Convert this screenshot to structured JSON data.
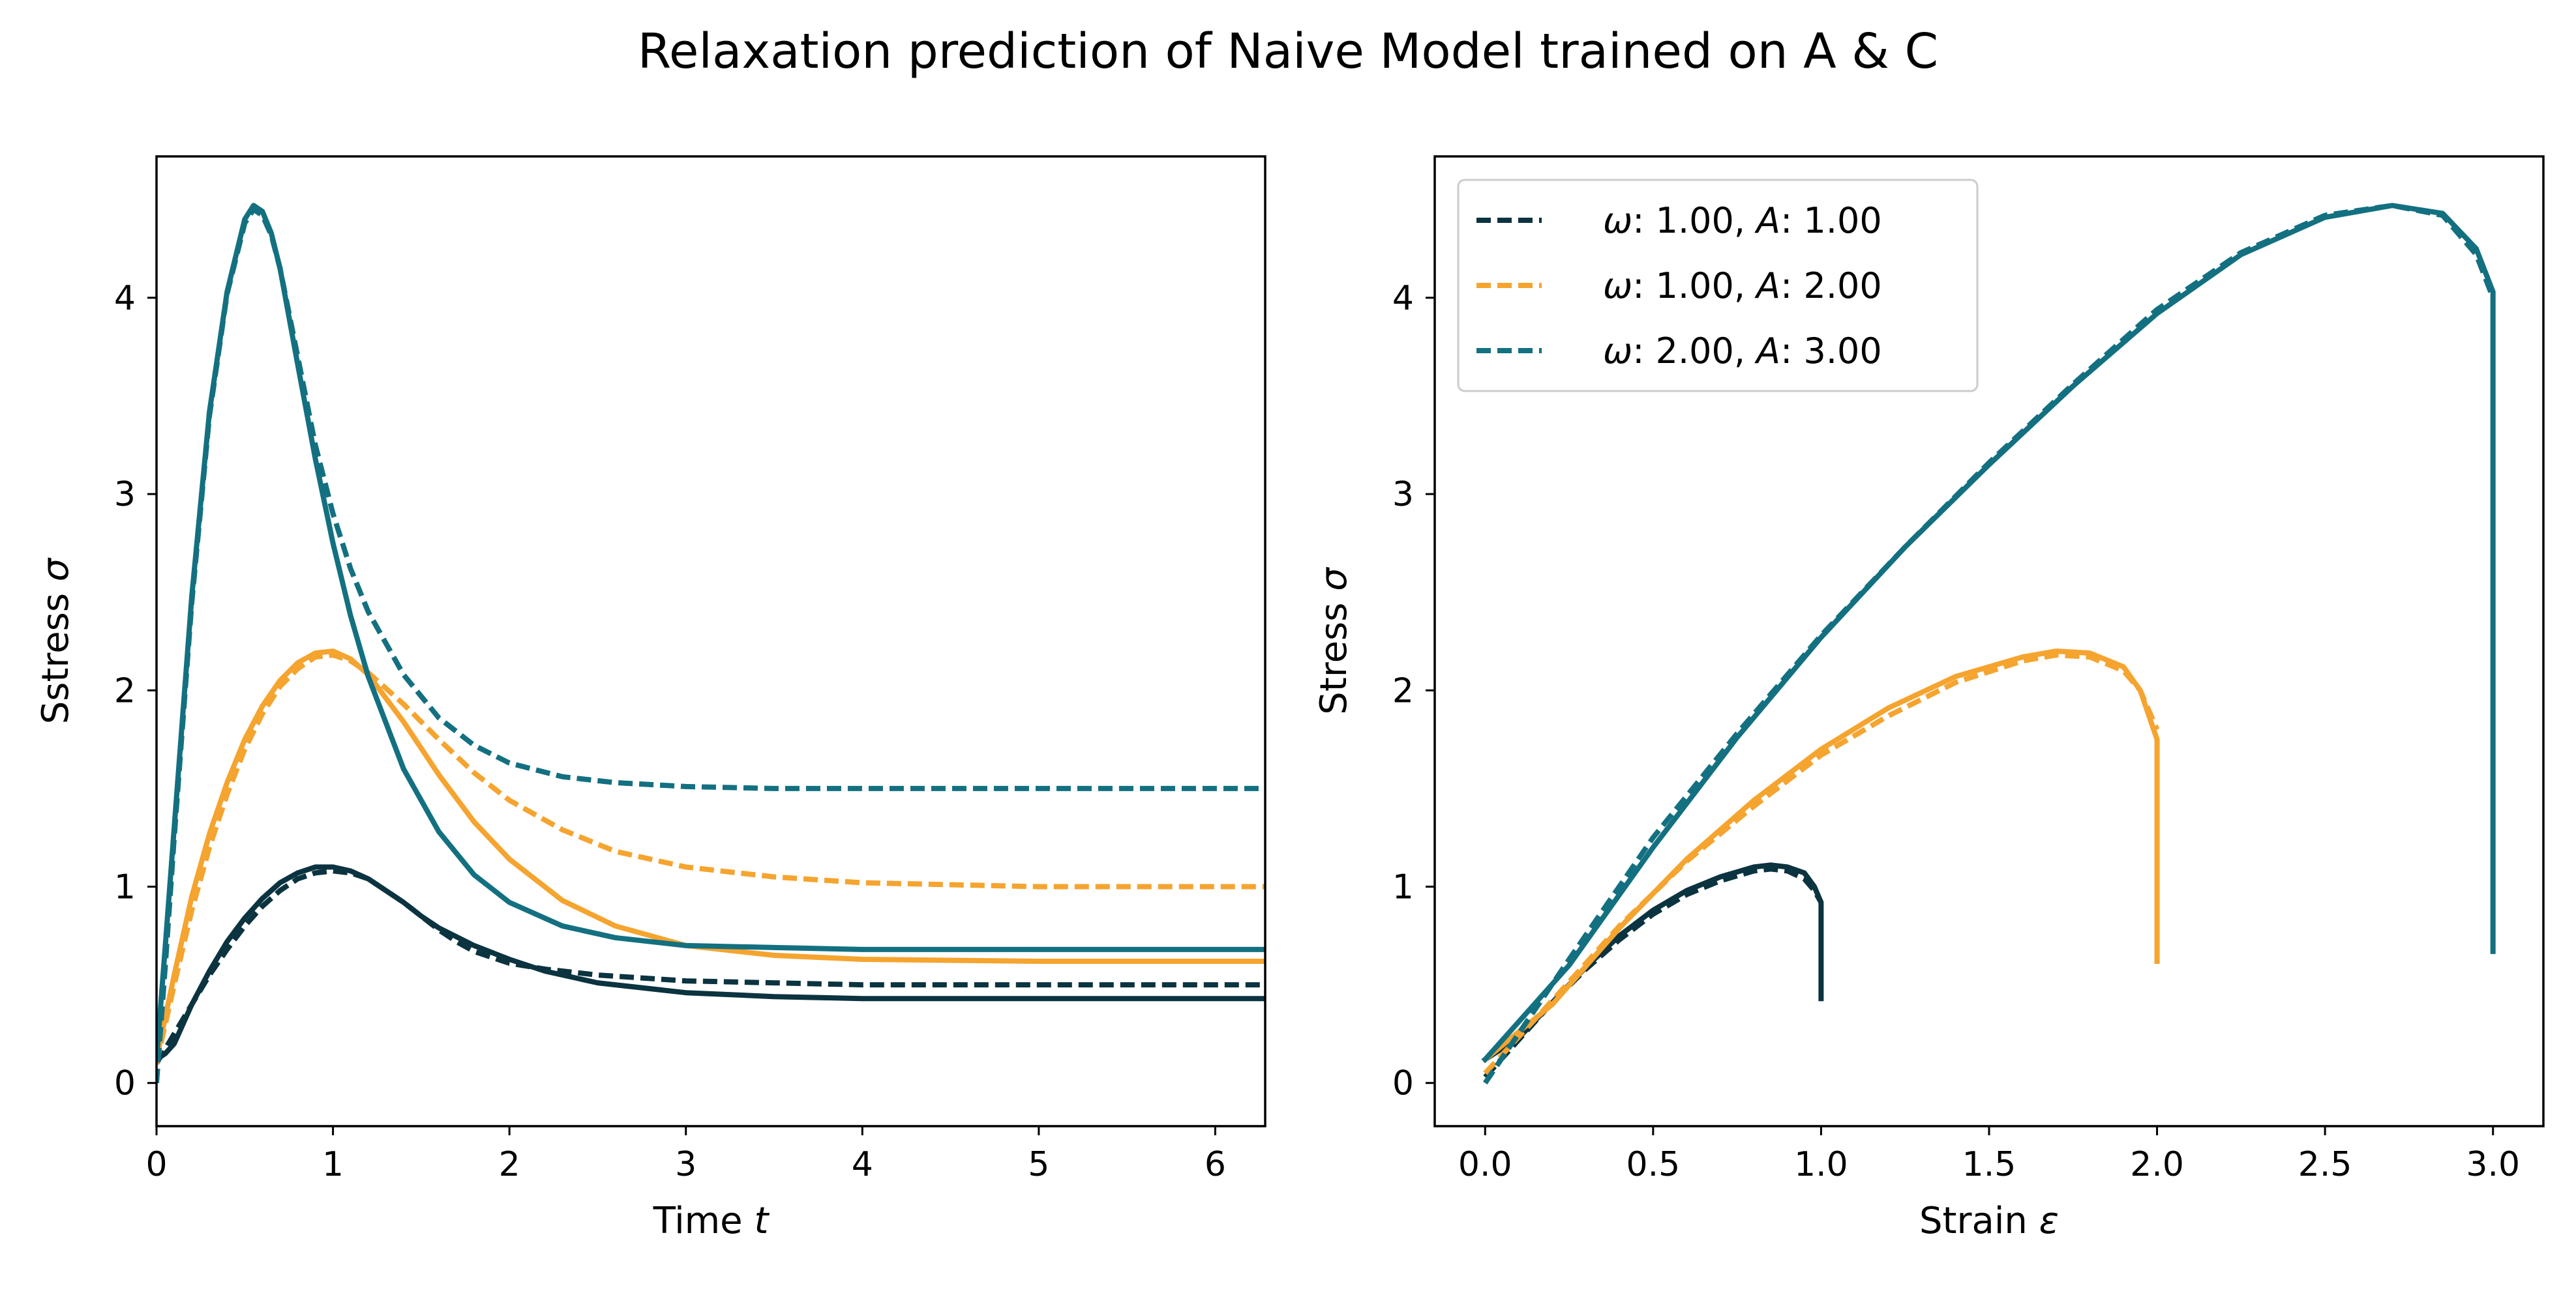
{
  "figure_title": "Relaxation prediction of Naive Model trained on A & C",
  "colors": {
    "dark": "#0b3340",
    "orange": "#f5a42f",
    "teal": "#137080"
  },
  "chart_data": [
    {
      "type": "line",
      "xlabel": "Time t",
      "ylabel": "Sstress σ",
      "xlim": [
        0,
        6.283
      ],
      "ylim": [
        -0.22,
        4.72
      ],
      "xticks": [
        0,
        1,
        2,
        3,
        4,
        5,
        6
      ],
      "yticks": [
        0,
        1,
        2,
        3,
        4
      ],
      "grid": false,
      "series": [
        {
          "color": "#0b3340",
          "style": "dashed",
          "group": "ω: 1.00, A: 1.00",
          "x": [
            0,
            0.1,
            0.2,
            0.3,
            0.4,
            0.5,
            0.6,
            0.7,
            0.8,
            0.9,
            1.0,
            1.1,
            1.2,
            1.3,
            1.4,
            1.5,
            1.6,
            1.7,
            1.8,
            2.0,
            2.2,
            2.5,
            3.0,
            3.5,
            4.0,
            5.0,
            6.283
          ],
          "y": [
            0.1,
            0.25,
            0.4,
            0.55,
            0.68,
            0.8,
            0.9,
            0.98,
            1.04,
            1.07,
            1.08,
            1.07,
            1.04,
            0.98,
            0.92,
            0.85,
            0.78,
            0.72,
            0.67,
            0.61,
            0.58,
            0.55,
            0.52,
            0.51,
            0.5,
            0.5,
            0.5
          ]
        },
        {
          "color": "#0b3340",
          "style": "solid",
          "group": "ω: 1.00, A: 1.00",
          "x": [
            0,
            0.05,
            0.1,
            0.2,
            0.3,
            0.4,
            0.5,
            0.6,
            0.7,
            0.8,
            0.9,
            1.0,
            1.1,
            1.2,
            1.3,
            1.4,
            1.5,
            1.6,
            1.8,
            2.0,
            2.2,
            2.5,
            3.0,
            3.5,
            4.0,
            5.0,
            6.283
          ],
          "y": [
            0.12,
            0.15,
            0.2,
            0.4,
            0.57,
            0.72,
            0.84,
            0.94,
            1.02,
            1.07,
            1.1,
            1.1,
            1.08,
            1.04,
            0.98,
            0.92,
            0.85,
            0.79,
            0.7,
            0.63,
            0.57,
            0.51,
            0.46,
            0.44,
            0.43,
            0.43,
            0.43
          ]
        },
        {
          "color": "#f5a42f",
          "style": "dashed",
          "group": "ω: 1.00, A: 2.00",
          "x": [
            0,
            0.1,
            0.2,
            0.3,
            0.4,
            0.5,
            0.6,
            0.7,
            0.8,
            0.9,
            1.0,
            1.1,
            1.2,
            1.4,
            1.6,
            1.8,
            2.0,
            2.3,
            2.6,
            3.0,
            3.5,
            4.0,
            4.5,
            5.0,
            6.283
          ],
          "y": [
            0.1,
            0.5,
            0.88,
            1.2,
            1.47,
            1.7,
            1.88,
            2.02,
            2.11,
            2.17,
            2.18,
            2.15,
            2.09,
            1.93,
            1.75,
            1.58,
            1.44,
            1.29,
            1.18,
            1.1,
            1.05,
            1.02,
            1.01,
            1.0,
            1.0
          ]
        },
        {
          "color": "#f5a42f",
          "style": "solid",
          "group": "ω: 1.00, A: 2.00",
          "x": [
            0,
            0.1,
            0.2,
            0.3,
            0.4,
            0.5,
            0.6,
            0.7,
            0.8,
            0.9,
            1.0,
            1.1,
            1.2,
            1.4,
            1.6,
            1.8,
            2.0,
            2.3,
            2.6,
            3.0,
            3.5,
            4.0,
            5.0,
            6.283
          ],
          "y": [
            0.12,
            0.55,
            0.95,
            1.27,
            1.53,
            1.75,
            1.92,
            2.05,
            2.14,
            2.19,
            2.2,
            2.16,
            2.08,
            1.84,
            1.57,
            1.33,
            1.14,
            0.93,
            0.8,
            0.7,
            0.65,
            0.63,
            0.62,
            0.62
          ]
        },
        {
          "color": "#137080",
          "style": "dashed",
          "group": "ω: 2.00, A: 3.00",
          "x": [
            0,
            0.05,
            0.1,
            0.2,
            0.3,
            0.4,
            0.5,
            0.55,
            0.6,
            0.65,
            0.7,
            0.8,
            0.9,
            1.0,
            1.1,
            1.2,
            1.4,
            1.6,
            1.8,
            2.0,
            2.3,
            2.6,
            3.0,
            3.5,
            4.0,
            5.0,
            6.283
          ],
          "y": [
            0,
            0.6,
            1.25,
            2.45,
            3.4,
            4.02,
            4.38,
            4.45,
            4.42,
            4.32,
            4.15,
            3.7,
            3.25,
            2.9,
            2.62,
            2.4,
            2.08,
            1.86,
            1.72,
            1.63,
            1.56,
            1.53,
            1.51,
            1.5,
            1.5,
            1.5,
            1.5
          ]
        },
        {
          "color": "#137080",
          "style": "solid",
          "group": "ω: 2.00, A: 3.00",
          "x": [
            0,
            0.05,
            0.1,
            0.2,
            0.3,
            0.4,
            0.5,
            0.55,
            0.6,
            0.65,
            0.7,
            0.8,
            0.9,
            1.0,
            1.1,
            1.2,
            1.4,
            1.6,
            1.8,
            2.0,
            2.3,
            2.6,
            3.0,
            3.5,
            4.0,
            5.0,
            6.283
          ],
          "y": [
            0.12,
            0.7,
            1.3,
            2.48,
            3.42,
            4.03,
            4.4,
            4.47,
            4.44,
            4.33,
            4.15,
            3.66,
            3.18,
            2.75,
            2.38,
            2.07,
            1.6,
            1.28,
            1.06,
            0.92,
            0.8,
            0.74,
            0.7,
            0.69,
            0.68,
            0.68,
            0.68
          ]
        }
      ]
    },
    {
      "type": "line",
      "xlabel": "Strain ε",
      "ylabel": "Stress σ",
      "xlim": [
        -0.15,
        3.15
      ],
      "ylim": [
        -0.22,
        4.72
      ],
      "xticks": [
        0.0,
        0.5,
        1.0,
        1.5,
        2.0,
        2.5,
        3.0
      ],
      "xtick_labels": [
        "0.0",
        "0.5",
        "1.0",
        "1.5",
        "2.0",
        "2.5",
        "3.0"
      ],
      "yticks": [
        0,
        1,
        2,
        3,
        4
      ],
      "grid": false,
      "legend": {
        "location": "upper-left",
        "entries": [
          {
            "omega": "1.00",
            "A": "1.00",
            "color": "#0b3340"
          },
          {
            "omega": "1.00",
            "A": "2.00",
            "color": "#f5a42f"
          },
          {
            "omega": "2.00",
            "A": "3.00",
            "color": "#137080"
          }
        ]
      },
      "series": [
        {
          "color": "#0b3340",
          "style": "dashed",
          "group": "ω: 1.00, A: 1.00",
          "x": [
            0,
            0.1,
            0.2,
            0.3,
            0.4,
            0.5,
            0.6,
            0.7,
            0.8,
            0.85,
            0.9,
            0.95,
            0.98,
            1.0
          ],
          "y": [
            0.03,
            0.22,
            0.41,
            0.58,
            0.73,
            0.86,
            0.96,
            1.03,
            1.08,
            1.09,
            1.08,
            1.04,
            0.98,
            0.92
          ]
        },
        {
          "color": "#0b3340",
          "style": "solid",
          "group": "ω: 1.00, A: 1.00",
          "x": [
            0,
            0.1,
            0.2,
            0.3,
            0.4,
            0.5,
            0.6,
            0.7,
            0.8,
            0.85,
            0.9,
            0.95,
            0.98,
            1.0,
            1.0
          ],
          "y": [
            0.12,
            0.23,
            0.41,
            0.59,
            0.75,
            0.88,
            0.98,
            1.05,
            1.1,
            1.11,
            1.1,
            1.07,
            1.0,
            0.92,
            0.43
          ]
        },
        {
          "color": "#f5a42f",
          "style": "dashed",
          "group": "ω: 1.00, A: 2.00",
          "x": [
            0,
            0.2,
            0.4,
            0.6,
            0.8,
            1.0,
            1.2,
            1.4,
            1.6,
            1.7,
            1.8,
            1.9,
            1.95,
            2.0
          ],
          "y": [
            0.05,
            0.42,
            0.8,
            1.13,
            1.41,
            1.67,
            1.87,
            2.04,
            2.15,
            2.18,
            2.17,
            2.1,
            2.0,
            1.8
          ]
        },
        {
          "color": "#f5a42f",
          "style": "solid",
          "group": "ω: 1.00, A: 2.00",
          "x": [
            0,
            0.2,
            0.4,
            0.6,
            0.8,
            1.0,
            1.2,
            1.4,
            1.6,
            1.7,
            1.8,
            1.9,
            1.95,
            2.0,
            2.0
          ],
          "y": [
            0.12,
            0.4,
            0.79,
            1.14,
            1.44,
            1.7,
            1.91,
            2.07,
            2.17,
            2.2,
            2.19,
            2.12,
            2.0,
            1.75,
            0.62
          ]
        },
        {
          "color": "#137080",
          "style": "dashed",
          "group": "ω: 2.00, A: 3.00",
          "x": [
            0,
            0.25,
            0.5,
            0.75,
            1.0,
            1.25,
            1.5,
            1.75,
            2.0,
            2.25,
            2.5,
            2.7,
            2.85,
            2.95,
            3.0
          ],
          "y": [
            0,
            0.63,
            1.25,
            1.78,
            2.28,
            2.73,
            3.16,
            3.56,
            3.94,
            4.23,
            4.42,
            4.47,
            4.42,
            4.22,
            4.0
          ]
        },
        {
          "color": "#137080",
          "style": "solid",
          "group": "ω: 2.00, A: 3.00",
          "x": [
            0,
            0.25,
            0.5,
            0.75,
            1.0,
            1.25,
            1.5,
            1.75,
            2.0,
            2.25,
            2.5,
            2.7,
            2.85,
            2.95,
            3.0,
            3.0
          ],
          "y": [
            0.12,
            0.6,
            1.2,
            1.76,
            2.27,
            2.73,
            3.15,
            3.55,
            3.92,
            4.22,
            4.41,
            4.47,
            4.43,
            4.25,
            4.03,
            0.67
          ]
        }
      ]
    }
  ]
}
